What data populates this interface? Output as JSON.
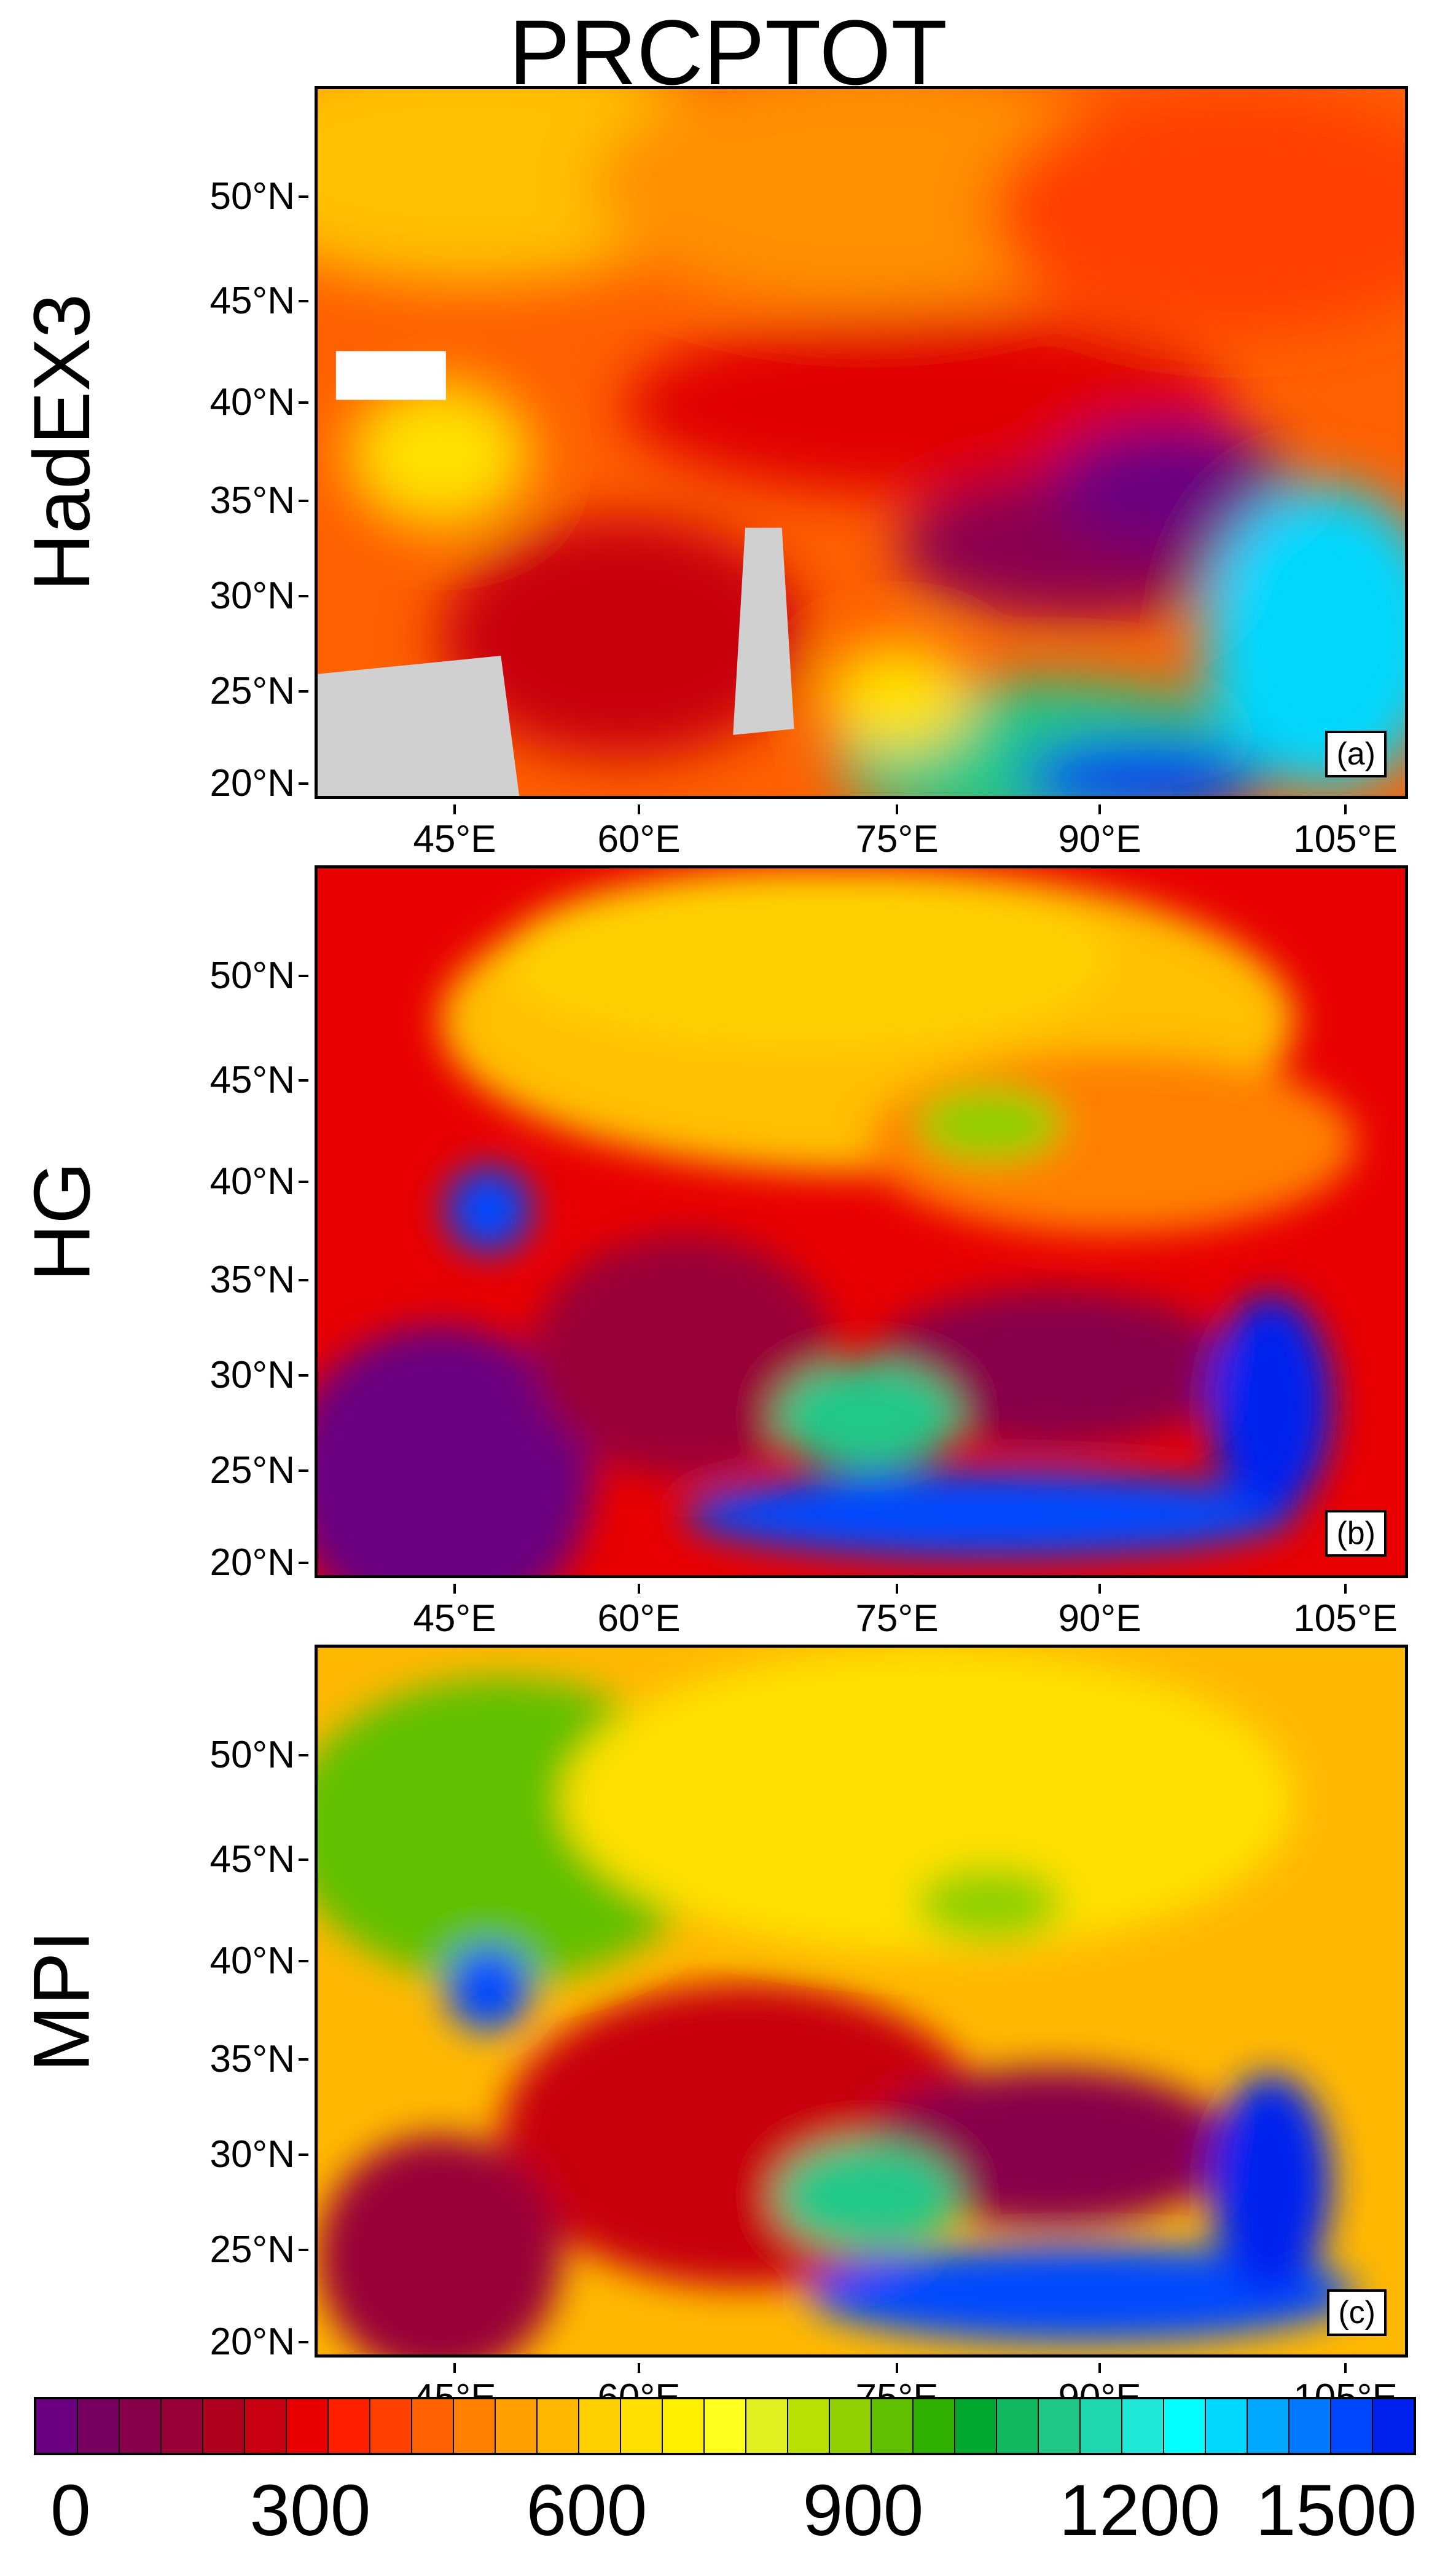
{
  "title": "PRCPTOT",
  "panels": [
    {
      "row_label": "HadEX3",
      "tag": "(a)"
    },
    {
      "row_label": "HG",
      "tag": "(b)"
    },
    {
      "row_label": "MPI",
      "tag": "(c)"
    }
  ],
  "lat_labels": [
    "50°N",
    "45°N",
    "40°N",
    "35°N",
    "30°N",
    "25°N",
    "20°N"
  ],
  "lon_labels": [
    "45°E",
    "60°E",
    "75°E",
    "90°E",
    "105°E"
  ],
  "colorbar": {
    "ticks": [
      "0",
      "300",
      "600",
      "900",
      "1200",
      "1500"
    ],
    "colors": [
      "#6a0080",
      "#780060",
      "#88004a",
      "#9a0038",
      "#b00020",
      "#c80010",
      "#e80000",
      "#ff2000",
      "#ff4000",
      "#ff6000",
      "#ff8000",
      "#ffa000",
      "#ffb800",
      "#ffd000",
      "#ffe000",
      "#fff000",
      "#ffff20",
      "#e0f020",
      "#b8e000",
      "#90d000",
      "#60c000",
      "#30b000",
      "#00a830",
      "#10b860",
      "#20c888",
      "#20d8b0",
      "#20e8d8",
      "#00ffff",
      "#00d8ff",
      "#00a8ff",
      "#0078ff",
      "#0048ff",
      "#0020f0"
    ]
  },
  "land_missing_color": "#d0d0d0"
}
